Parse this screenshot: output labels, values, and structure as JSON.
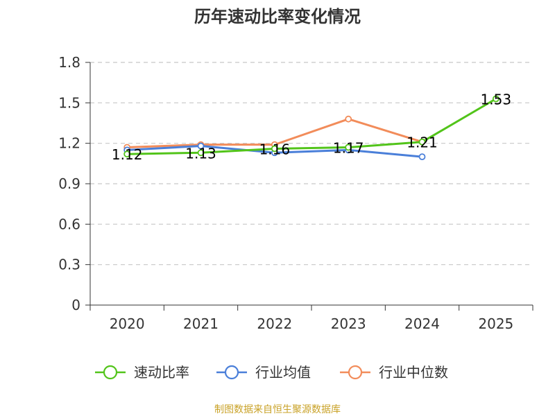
{
  "chart_data": {
    "type": "line",
    "title": "历年速动比率变化情况",
    "categories": [
      "2020",
      "2021",
      "2022",
      "2023",
      "2024",
      "2025"
    ],
    "ylim": [
      0,
      1.8
    ],
    "yticks": [
      "0",
      "0.3",
      "0.6",
      "0.9",
      "1.2",
      "1.5",
      "1.8"
    ],
    "grid": true,
    "legend_position": "bottom",
    "series": [
      {
        "name": "速动比率",
        "color": "#52c41a",
        "values": [
          1.12,
          1.13,
          1.16,
          1.17,
          1.21,
          1.53
        ],
        "labels": [
          "1.12",
          "1.13",
          "1.16",
          "1.17",
          "1.21",
          "1.53"
        ]
      },
      {
        "name": "行业均值",
        "color": "#4a7fd9",
        "values": [
          1.15,
          1.18,
          1.13,
          1.15,
          1.1,
          null
        ]
      },
      {
        "name": "行业中位数",
        "color": "#f28c5a",
        "values": [
          1.17,
          1.19,
          1.19,
          1.38,
          1.21,
          null
        ]
      }
    ]
  },
  "source": "制图数据来自恒生聚源数据库"
}
